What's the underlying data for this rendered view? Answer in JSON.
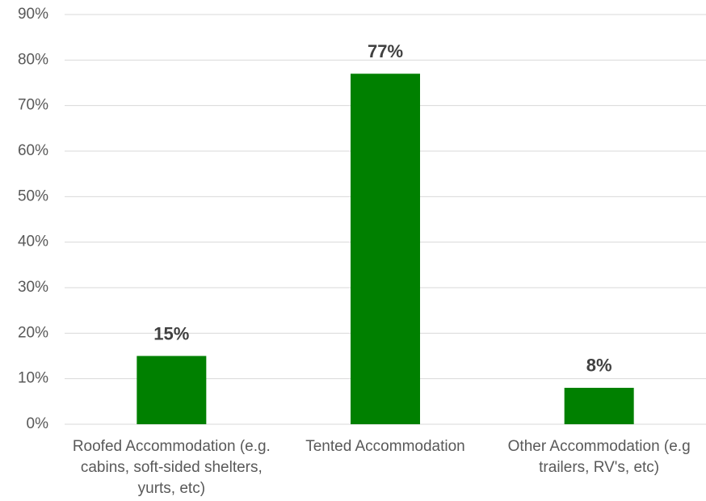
{
  "chart_data": {
    "type": "bar",
    "categories": [
      "Roofed Accommodation (e.g. cabins, soft-sided shelters, yurts, etc)",
      "Tented Accommodation",
      "Other Accommodation (e.g trailers, RV's, etc)"
    ],
    "values": [
      15,
      77,
      8
    ],
    "value_labels": [
      "15%",
      "77%",
      "8%"
    ],
    "color": "#008000",
    "ylim": [
      0,
      90
    ],
    "yticks": [
      {
        "value": 0,
        "label": "0%"
      },
      {
        "value": 10,
        "label": "10%"
      },
      {
        "value": 20,
        "label": "20%"
      },
      {
        "value": 30,
        "label": "30%"
      },
      {
        "value": 40,
        "label": "40%"
      },
      {
        "value": 50,
        "label": "50%"
      },
      {
        "value": 60,
        "label": "60%"
      },
      {
        "value": 70,
        "label": "70%"
      },
      {
        "value": 80,
        "label": "80%"
      },
      {
        "value": 90,
        "label": "90%"
      }
    ],
    "grid": true
  }
}
